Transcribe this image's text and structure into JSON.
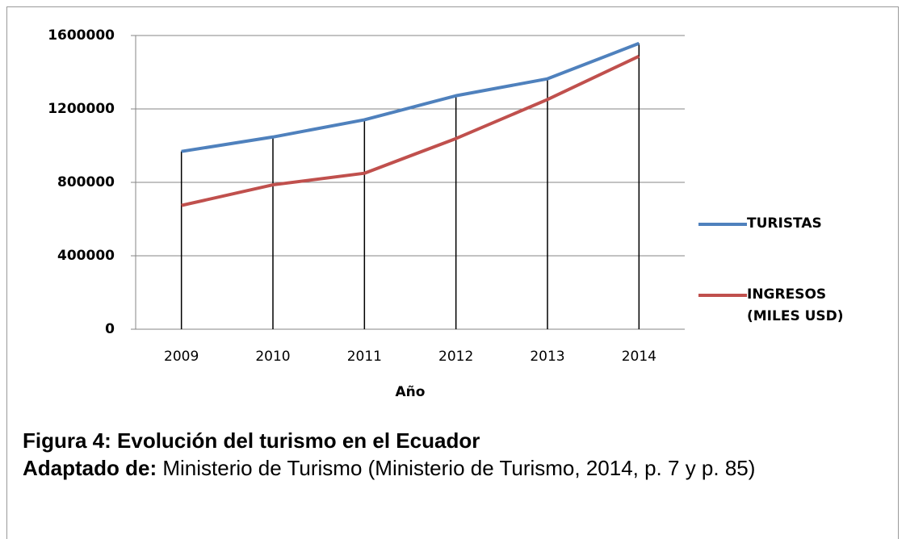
{
  "chart_data": {
    "type": "line",
    "x_label": "Año",
    "categories": [
      "2009",
      "2010",
      "2011",
      "2012",
      "2013",
      "2014"
    ],
    "series": [
      {
        "name": "TURISTAS",
        "color": "#4f81bd",
        "values": [
          968499,
          1047098,
          1141037,
          1271953,
          1364057,
          1557006
        ]
      },
      {
        "name": "INGRESOS (MILES USD)",
        "color": "#c0504d",
        "values": [
          674200,
          786500,
          849700,
          1038700,
          1251300,
          1487200
        ]
      }
    ],
    "ylim": [
      0,
      1600000
    ],
    "yticks": [
      0,
      400000,
      800000,
      1200000,
      1600000
    ],
    "grid": true,
    "legend": "right",
    "drop_lines": true
  },
  "caption": {
    "title": "Figura 4: Evolución del turismo en el Ecuador",
    "source_label": "Adaptado de:",
    "source_text": " Ministerio de Turismo (Ministerio de Turismo, 2014, p. 7 y p. 85)"
  }
}
